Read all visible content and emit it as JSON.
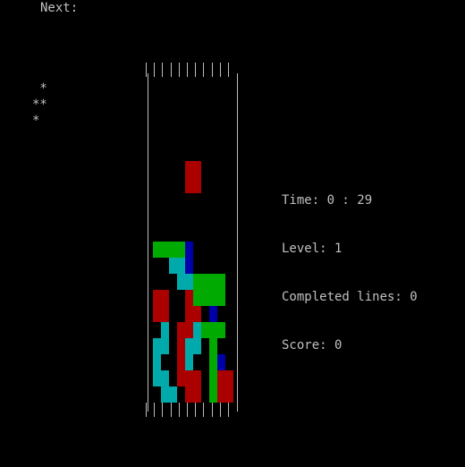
{
  "next": {
    "label": "Next:",
    "preview": " *\n**\n*"
  },
  "stats": {
    "time": "Time: 0 : 29",
    "level": "Level: 1",
    "lines": "Completed lines: 0",
    "score": "Score: 0"
  },
  "colors": {
    "red": "#aa0000",
    "green": "#00aa00",
    "cyan": "#00aaaa",
    "blue": "#0000aa",
    "empty": "#000000"
  },
  "board": {
    "columns": 10,
    "rows": 20,
    "grid": [
      "..........",
      "..........",
      "..........",
      "..........",
      "..........",
      "....RR....",
      "....RR....",
      "..........",
      "..........",
      "..........",
      "GGGGB.....",
      "..CCB.....",
      "...CCGGGG.",
      "RR..RGGGG.",
      "RR..RR.B..",
      ".C.RRCGGG.",
      "CC.RCC.G..",
      "C..RC..GB.",
      "CC.RRR.GRR",
      ".CC.RR.GRR"
    ]
  }
}
